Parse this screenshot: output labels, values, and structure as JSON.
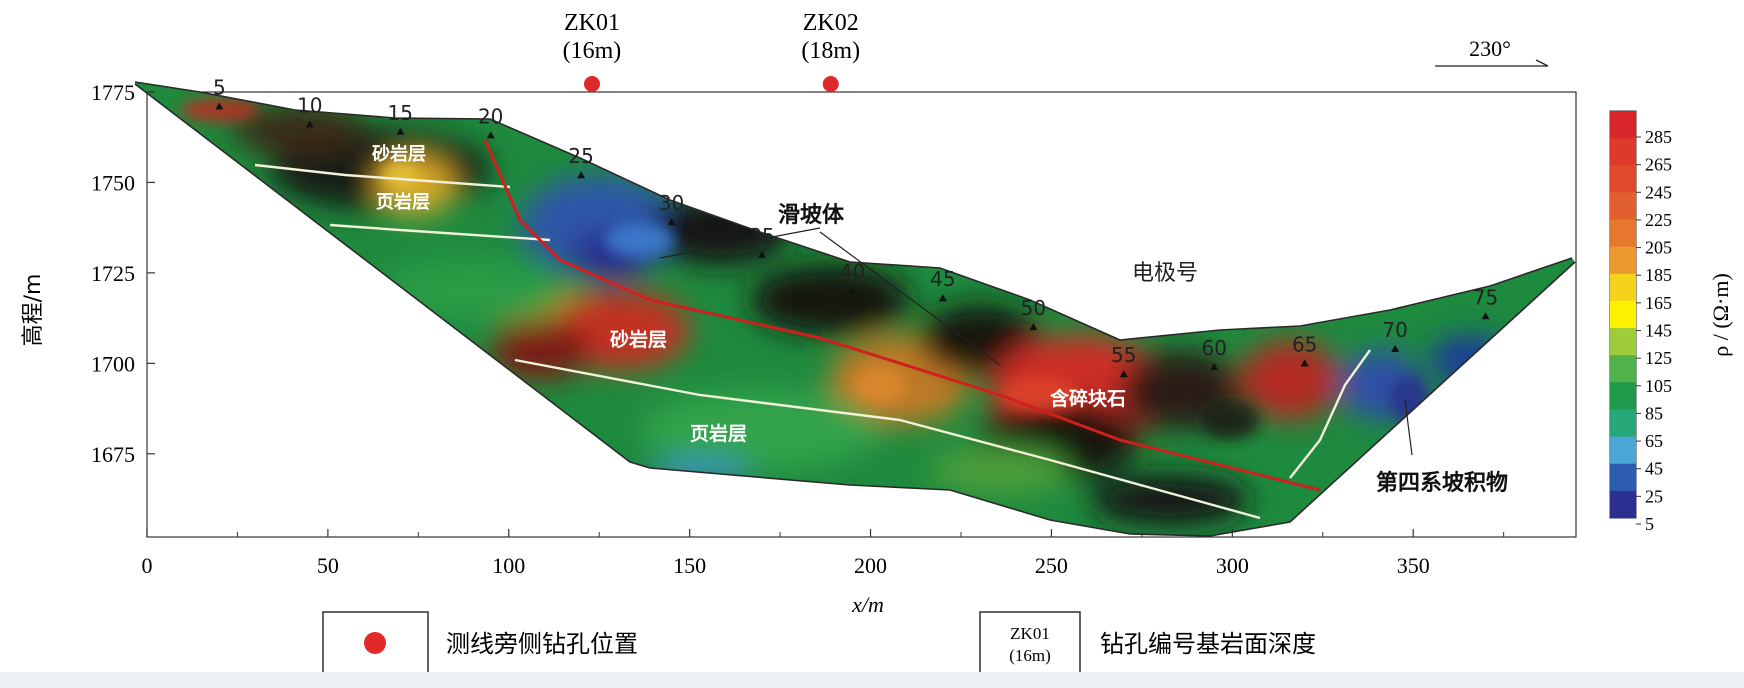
{
  "boreholes": [
    {
      "id": "ZK01",
      "depth": "(16m)",
      "x": 123
    },
    {
      "id": "ZK02",
      "depth": "(18m)",
      "x": 189
    }
  ],
  "direction": "230°",
  "electrodes": [
    {
      "label": "5",
      "x": 20,
      "z": 1771
    },
    {
      "label": "10",
      "x": 45,
      "z": 1766
    },
    {
      "label": "15",
      "x": 70,
      "z": 1764
    },
    {
      "label": "20",
      "x": 95,
      "z": 1763
    },
    {
      "label": "25",
      "x": 120,
      "z": 1752
    },
    {
      "label": "30",
      "x": 145,
      "z": 1739
    },
    {
      "label": "35",
      "x": 170,
      "z": 1730
    },
    {
      "label": "40",
      "x": 195,
      "z": 1720
    },
    {
      "label": "45",
      "x": 220,
      "z": 1718
    },
    {
      "label": "50",
      "x": 245,
      "z": 1710
    },
    {
      "label": "55",
      "x": 270,
      "z": 1697
    },
    {
      "label": "60",
      "x": 295,
      "z": 1699
    },
    {
      "label": "65",
      "x": 320,
      "z": 1700
    },
    {
      "label": "70",
      "x": 345,
      "z": 1704
    },
    {
      "label": "75",
      "x": 370,
      "z": 1713
    }
  ],
  "labels": {
    "sandstone_upper": "砂岩层",
    "shale_upper": "页岩层",
    "sandstone_lower": "砂岩层",
    "shale_lower": "页岩层",
    "landslide": "滑坡体",
    "electrode_no": "电极号",
    "rubble": "含碎块石",
    "quaternary": "第四系坡积物"
  },
  "axes": {
    "xlabel": "x/m",
    "ylabel": "高程/m",
    "xticks": [
      0,
      50,
      100,
      150,
      200,
      250,
      300,
      350
    ],
    "yticks": [
      1775,
      1750,
      1725,
      1700,
      1675
    ],
    "xlim": [
      0,
      395
    ],
    "ylim": [
      1652,
      1775
    ]
  },
  "colorbar": {
    "title": "ρ / (Ω·m)",
    "ticks": [
      "285",
      "265",
      "245",
      "225",
      "205",
      "185",
      "165",
      "145",
      "125",
      "105",
      "85",
      "65",
      "45",
      "25",
      "5"
    ],
    "colors": [
      "#d8262a",
      "#de3a2b",
      "#e04a2c",
      "#e2602d",
      "#e6782e",
      "#ec9a2f",
      "#f5d21c",
      "#fff200",
      "#9fcc3b",
      "#4fb24a",
      "#1f9a4a",
      "#27a879",
      "#4aa7d8",
      "#2e5db0",
      "#2b2f8f"
    ]
  },
  "legend": {
    "borehole_text": "测线旁侧钻孔位置",
    "sample_id": "ZK01",
    "sample_depth": "(16m)",
    "sample_text": "钻孔编号基岩面深度"
  },
  "colors": {
    "borehole_dot": "#e02a2a",
    "slip_line": "#d0201e",
    "boundary_line": "#f2f2da"
  }
}
